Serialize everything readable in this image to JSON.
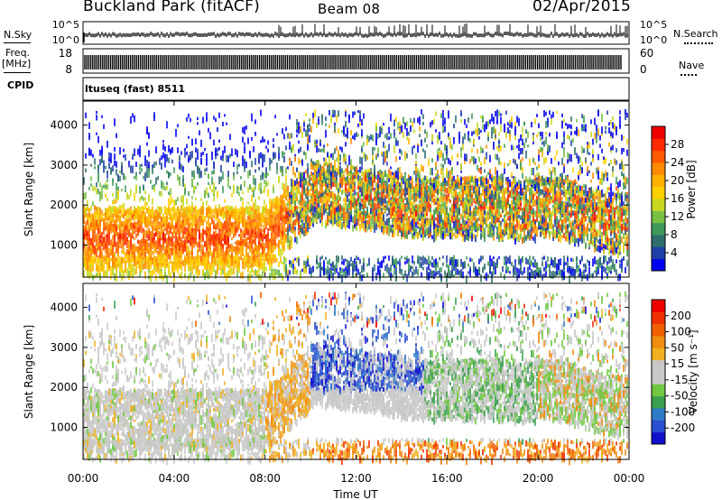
{
  "header": {
    "site": "Buckland Park (fitACF)",
    "beam": "Beam 08",
    "date": "02/Apr/2015"
  },
  "top_panels": {
    "nsky_label": "N.Sky",
    "nsky_ticks": [
      "10^5",
      "10^0"
    ],
    "nsearch_label": "N.Search",
    "nsearch_ticks": [
      "10^5",
      "10^0"
    ],
    "freq_label_line1": "Freq.",
    "freq_label_line2": "[MHz]",
    "freq_ticks": [
      "18",
      "8"
    ],
    "nave_label": "Nave",
    "nave_ticks": [
      "60",
      "0"
    ],
    "cpid_label": "CPID",
    "cpid_value": "ltuseq (fast) 8511"
  },
  "chart_data": [
    {
      "type": "heatmap",
      "name": "power",
      "ylabel": "Slant Range [km]",
      "yticks": [
        1000,
        2000,
        3000,
        4000
      ],
      "ylim": [
        200,
        4600
      ],
      "xticks": [
        "00:00",
        "04:00",
        "08:00",
        "12:00",
        "16:00",
        "20:00",
        "00:00"
      ],
      "xlim_hours": [
        0,
        24
      ],
      "colorbar": {
        "label": "Power [dB]",
        "ticks": [
          "28",
          "24",
          "20",
          "16",
          "12",
          "8",
          "4"
        ],
        "colors": [
          "#0000ee",
          "#1f3fa8",
          "#2e6e6e",
          "#3f9a5a",
          "#77c043",
          "#c8d81e",
          "#ffd000",
          "#ffb000",
          "#ff8a00",
          "#ff5a00",
          "#ff2a00",
          "#ee0000"
        ]
      }
    },
    {
      "type": "heatmap",
      "name": "velocity",
      "ylabel": "Slant Range [km]",
      "yticks": [
        1000,
        2000,
        3000,
        4000
      ],
      "ylim": [
        200,
        4600
      ],
      "xticks": [
        "00:00",
        "04:00",
        "08:00",
        "12:00",
        "16:00",
        "20:00",
        "00:00"
      ],
      "xlim_hours": [
        0,
        24
      ],
      "xlabel": "Time UT",
      "colorbar": {
        "label": "Velocity [m s⁻¹]",
        "ticks": [
          "200",
          "100",
          "50",
          "15",
          "-15",
          "-50",
          "-100",
          "-200"
        ],
        "colors": [
          "#1010cc",
          "#2a4fd0",
          "#2e7ac8",
          "#3aa050",
          "#70c840",
          "#c8c8c8",
          "#c8c8c8",
          "#f0b020",
          "#f08c10",
          "#f06000",
          "#f03000",
          "#ee0000"
        ]
      }
    }
  ]
}
